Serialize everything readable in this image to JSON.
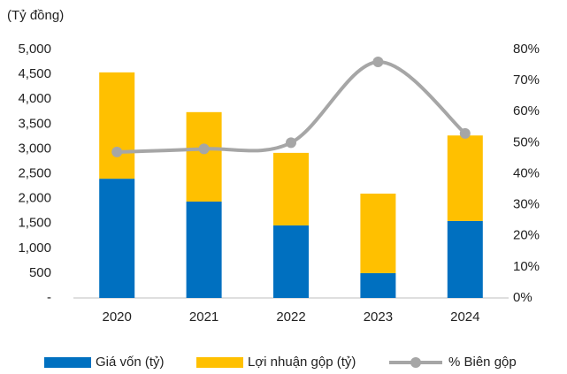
{
  "chart_data": {
    "type": "bar",
    "stacked": true,
    "y_label": "(Tỷ đồng)",
    "categories": [
      "2020",
      "2021",
      "2022",
      "2023",
      "2024"
    ],
    "series": [
      {
        "name": "Giá vốn (tỷ)",
        "color": "#0070c0",
        "values": [
          2400,
          1940,
          1460,
          500,
          1550
        ]
      },
      {
        "name": "Lợi nhuận gộp (tỷ)",
        "color": "#ffc000",
        "values": [
          2140,
          1800,
          1460,
          1600,
          1720
        ]
      },
      {
        "name": "% Biên gộp",
        "color": "#a6a6a6",
        "type": "line",
        "axis": "y2",
        "values": [
          47,
          48,
          50,
          76,
          53
        ]
      }
    ],
    "ylim": [
      0,
      5000
    ],
    "yticks": [
      {
        "value": 0,
        "label": "-"
      },
      500,
      {
        "value": 1000,
        "label": "1,000"
      },
      {
        "value": 1500,
        "label": "1,500"
      },
      {
        "value": 2000,
        "label": "2,000"
      },
      {
        "value": 2500,
        "label": "2,500"
      },
      {
        "value": 3000,
        "label": "3,000"
      },
      {
        "value": 3500,
        "label": "3,500"
      },
      {
        "value": 4000,
        "label": "4,000"
      },
      {
        "value": 4500,
        "label": "4,500"
      },
      {
        "value": 5000,
        "label": "5,000"
      }
    ],
    "y2lim": [
      0,
      80
    ],
    "y2ticks": [
      {
        "value": 0,
        "label": "0%"
      },
      {
        "value": 10,
        "label": "10%"
      },
      {
        "value": 20,
        "label": "20%"
      },
      {
        "value": 30,
        "label": "30%"
      },
      {
        "value": 40,
        "label": "40%"
      },
      {
        "value": 50,
        "label": "50%"
      },
      {
        "value": 60,
        "label": "60%"
      },
      {
        "value": 70,
        "label": "70%"
      },
      {
        "value": 80,
        "label": "80%"
      }
    ],
    "grid": false,
    "legend": "bottom"
  }
}
